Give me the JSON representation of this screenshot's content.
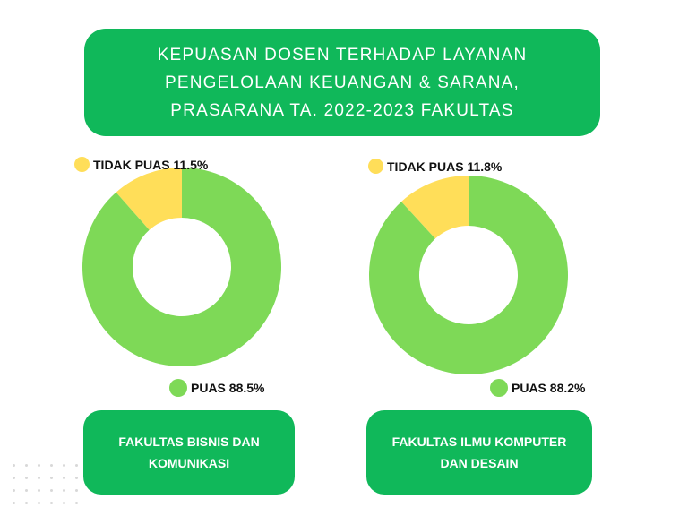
{
  "title": {
    "lines": [
      "KEPUASAN DOSEN TERHADAP LAYANAN",
      "PENGELOLAAN KEUANGAN & SARANA,",
      "PRASARANA TA. 2022-2023 FAKULTAS"
    ]
  },
  "colors": {
    "primary_green": "#10b85a",
    "puas": "#7ed957",
    "tidak_puas": "#ffde59"
  },
  "chart_data": [
    {
      "type": "pie",
      "variant": "donut",
      "title": "",
      "categories": [
        "TIDAK PUAS",
        "PUAS"
      ],
      "values": [
        11.5,
        88.5
      ],
      "labels": [
        "TIDAK PUAS 11.5%",
        "PUAS 88.5%"
      ],
      "faculty": [
        "FAKULTAS BISNIS DAN",
        "KOMUNIKASI"
      ]
    },
    {
      "type": "pie",
      "variant": "donut",
      "title": "",
      "categories": [
        "TIDAK PUAS",
        "PUAS"
      ],
      "values": [
        11.8,
        88.2
      ],
      "labels": [
        "TIDAK PUAS 11.8%",
        "PUAS 88.2%"
      ],
      "faculty": [
        "FAKULTAS ILMU KOMPUTER",
        "DAN DESAIN"
      ]
    }
  ]
}
